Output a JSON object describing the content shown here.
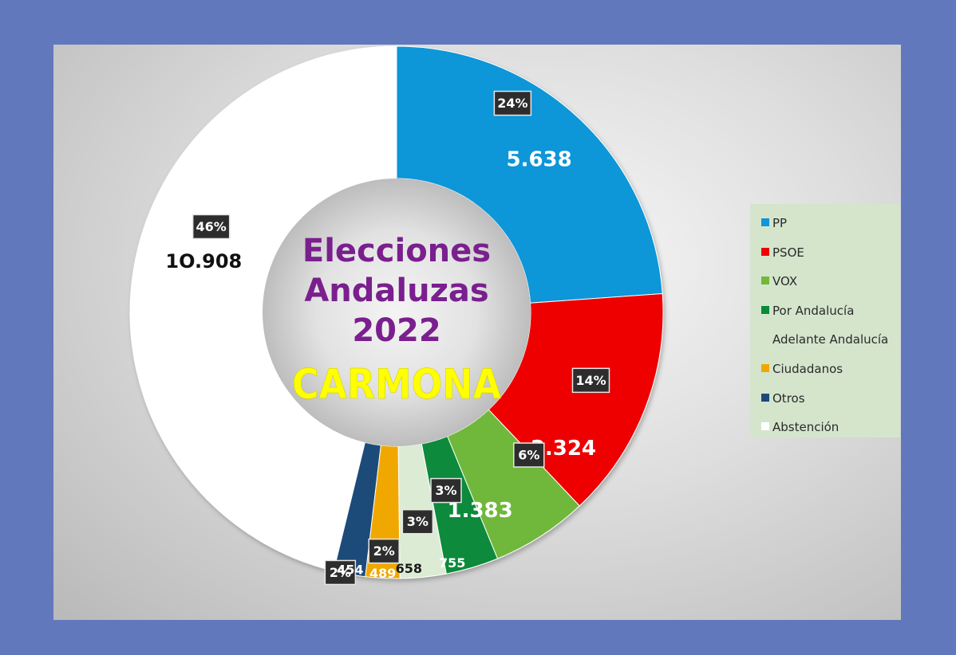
{
  "chart_data": {
    "type": "pie",
    "title_lines": [
      "Elecciones",
      "Andaluzas",
      "2022"
    ],
    "subtitle": "CARMONA",
    "legend_position": "right",
    "categories": [
      "PP",
      "PSOE",
      "VOX",
      "Por Andalucía",
      "Adelante Andalucía",
      "Ciudadanos",
      "Otros",
      "Abstención"
    ],
    "slices": [
      {
        "label": "PP",
        "value": 5638,
        "value_label": "5.638",
        "pct_label": "24%",
        "color": "#1096d8",
        "text_color": "#ffffff"
      },
      {
        "label": "PSOE",
        "value": 3324,
        "value_label": "3.324",
        "pct_label": "14%",
        "color": "#ee0000",
        "text_color": "#ffffff"
      },
      {
        "label": "VOX",
        "value": 1383,
        "value_label": "1.383",
        "pct_label": "6%",
        "color": "#70b83a",
        "text_color": "#ffffff"
      },
      {
        "label": "Por Andalucía",
        "value": 755,
        "value_label": "755",
        "pct_label": "3%",
        "color": "#0a8a3a",
        "text_color": "#ffffff"
      },
      {
        "label": "Adelante Andalucía",
        "value": 658,
        "value_label": "658",
        "pct_label": "3%",
        "color": "#dcecd4",
        "text_color": "#1a1a1a"
      },
      {
        "label": "Ciudadanos",
        "value": 489,
        "value_label": "489",
        "pct_label": "2%",
        "color": "#f0a800",
        "text_color": "#ffffff"
      },
      {
        "label": "Otros",
        "value": 454,
        "value_label": "454",
        "pct_label": "2%",
        "color": "#1c4b7a",
        "text_color": "#ffffff"
      },
      {
        "label": "Abstención",
        "value": 10908,
        "value_label": "1O.908",
        "pct_label": "46%",
        "color": "#ffffff",
        "text_color": "#111111"
      }
    ]
  },
  "legend": {
    "items": [
      {
        "label": "PP",
        "color": "#1096d8"
      },
      {
        "label": "PSOE",
        "color": "#ee0000"
      },
      {
        "label": "VOX",
        "color": "#70b83a"
      },
      {
        "label": "Por Andalucía",
        "color": "#0a8a3a"
      },
      {
        "label": "Adelante Andalucía",
        "color": ""
      },
      {
        "label": "Ciudadanos",
        "color": "#f0a800"
      },
      {
        "label": "Otros",
        "color": "#1c4b7a"
      },
      {
        "label": "Abstención",
        "color": "#ffffff"
      }
    ]
  }
}
